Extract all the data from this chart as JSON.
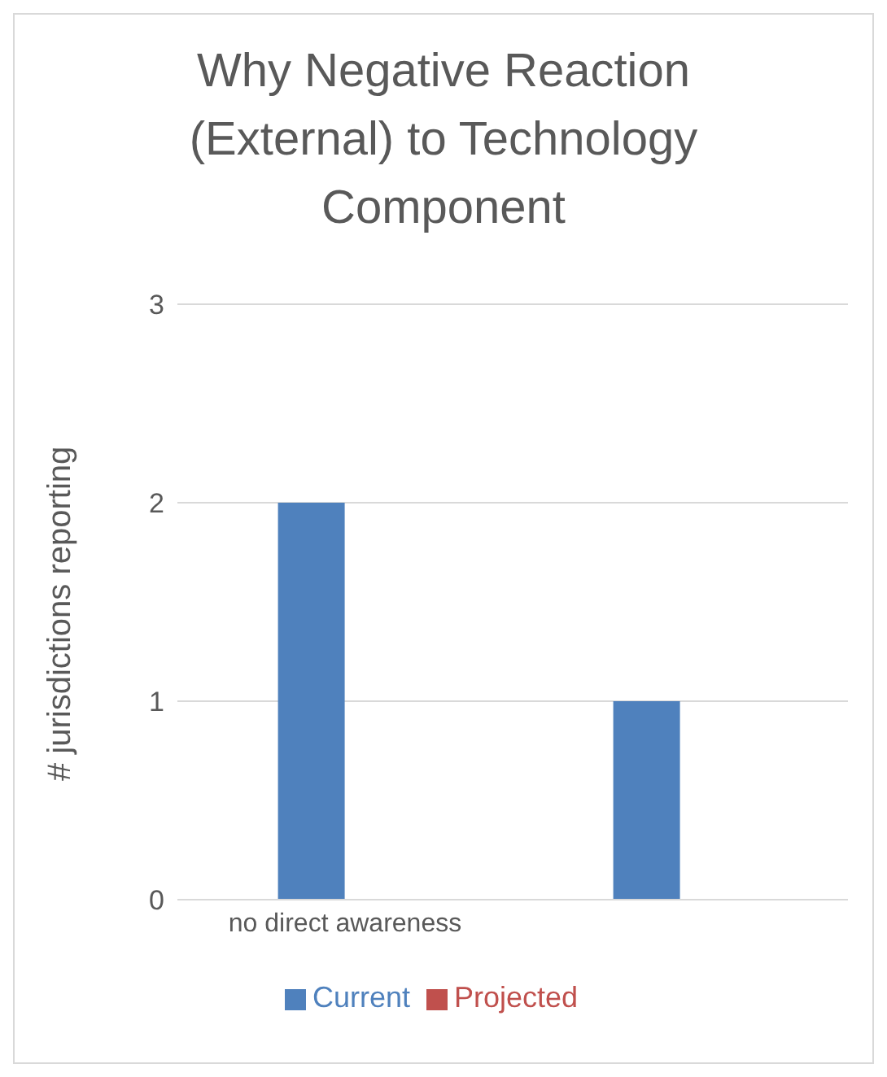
{
  "chart_data": {
    "type": "bar",
    "title": "Why Negative Reaction (External) to Technology Component",
    "ylabel": "# jurisdictions reporting",
    "categories": [
      "no direct awareness",
      null
    ],
    "series": [
      {
        "name": "Current",
        "color": "#4f81bd",
        "values": [
          2,
          1
        ]
      },
      {
        "name": "Projected",
        "color": "#c0504d",
        "values": [
          null,
          null
        ]
      }
    ],
    "ylim": [
      0,
      3
    ],
    "yticks": [
      0,
      1,
      2,
      3
    ],
    "grid": "y",
    "legend": "bottom"
  }
}
